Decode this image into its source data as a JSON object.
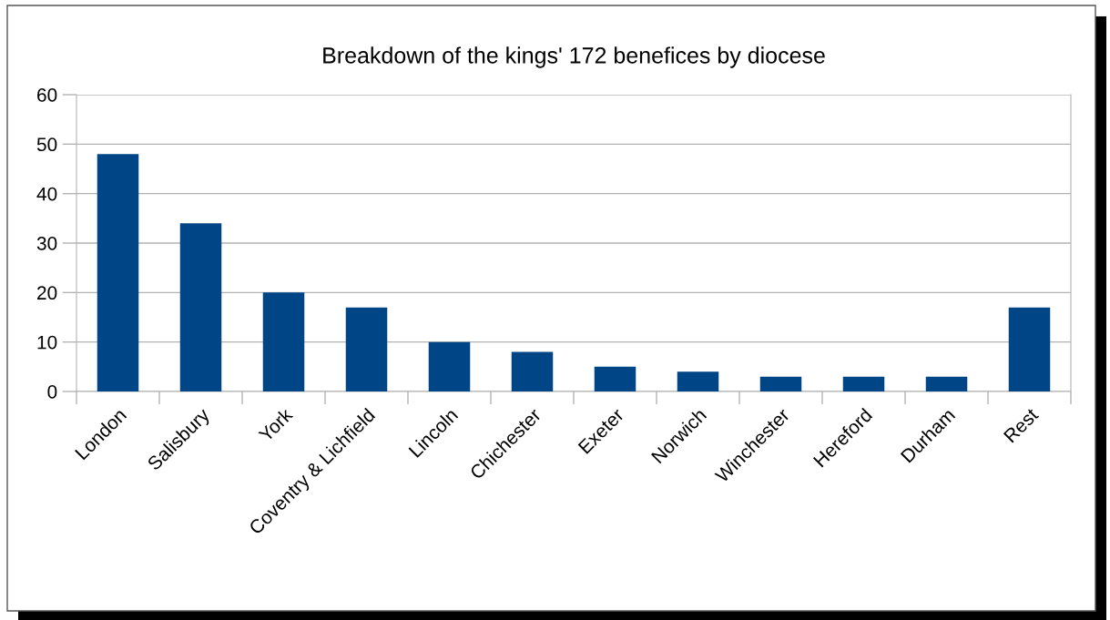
{
  "chart_data": {
    "type": "bar",
    "title": "Breakdown of the kings' 172 benefices by diocese",
    "categories": [
      "London",
      "Salisbury",
      "York",
      "Coventry & Lichfield",
      "Lincoln",
      "Chichester",
      "Exeter",
      "Norwich",
      "Winchester",
      "Hereford",
      "Durham",
      "Rest"
    ],
    "values": [
      48,
      34,
      20,
      17,
      10,
      8,
      5,
      4,
      3,
      3,
      3,
      17
    ],
    "color": "#004586",
    "ylim": [
      0,
      60
    ],
    "yticks": [
      0,
      10,
      20,
      30,
      40,
      50,
      60
    ],
    "grid": "y",
    "legend": false
  }
}
